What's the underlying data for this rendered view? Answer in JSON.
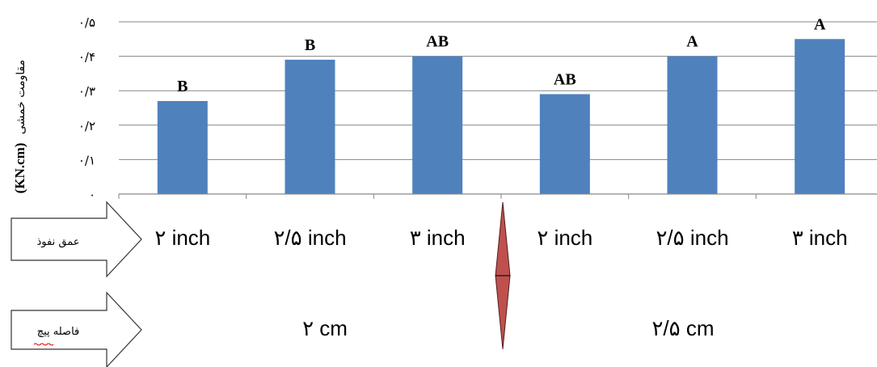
{
  "chart_data": {
    "type": "bar",
    "ylabel_unit": "(KN.cm)",
    "ylabel_text": "مقاومت خمشی",
    "yticks": [
      "۰",
      "۰/۱",
      "۰/۲",
      "۰/۳",
      "۰/۴",
      "۰/۵"
    ],
    "ylim": [
      0,
      0.5
    ],
    "grid": true,
    "categories": [
      "۲ inch",
      "۲/۵ inch",
      "۳ inch",
      "۲ inch",
      "۲/۵ inch",
      "۳ inch"
    ],
    "values": [
      0.27,
      0.39,
      0.4,
      0.29,
      0.4,
      0.45
    ],
    "letters": [
      "B",
      "B",
      "AB",
      "AB",
      "A",
      "A"
    ],
    "color": "#4F81BD"
  },
  "rows": {
    "depth_label": "عمق نفوذ",
    "spacing_label": "فاصله پیچ",
    "spacing_values": [
      "۲ cm",
      "۲/۵ cm"
    ]
  },
  "colors": {
    "divider": "#C0504D",
    "grid": "#868686"
  }
}
